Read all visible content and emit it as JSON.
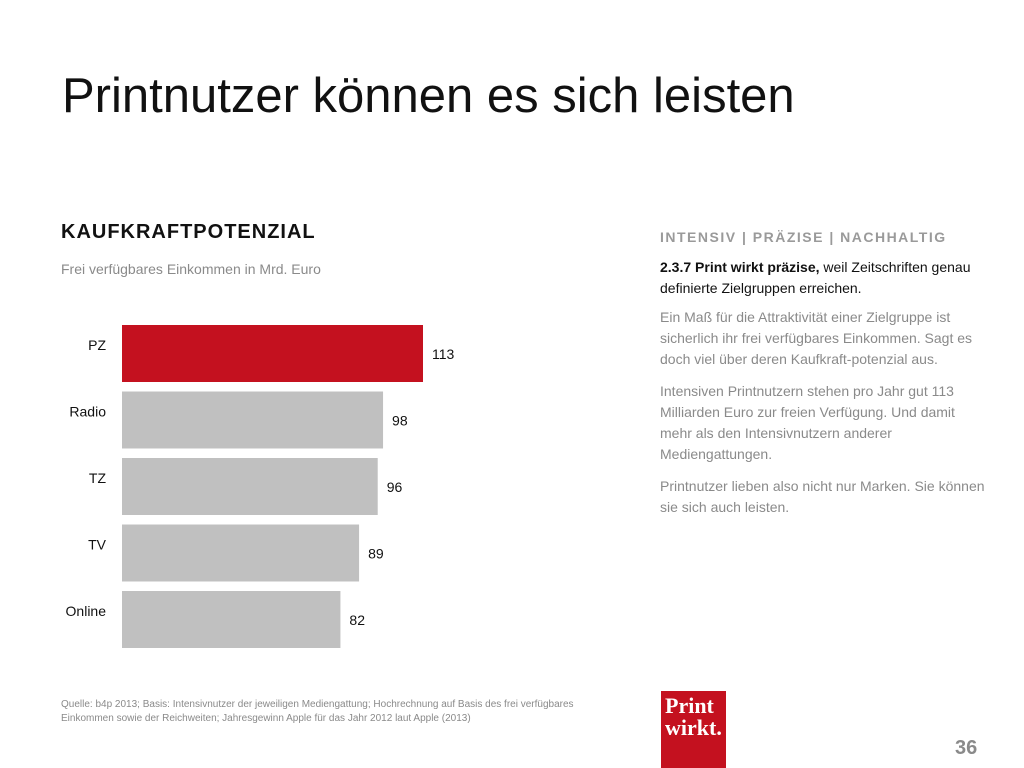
{
  "slide": {
    "title": "Printnutzer können es sich leisten",
    "page_number": "36"
  },
  "chart_data": {
    "type": "bar",
    "orientation": "horizontal",
    "title": "KAUFKRAFTPOTENZIAL",
    "subtitle": "Frei verfügbares Einkommen in Mrd. Euro",
    "categories": [
      "PZ",
      "Radio",
      "TZ",
      "TV",
      "Online"
    ],
    "values": [
      113,
      98,
      96,
      89,
      82
    ],
    "colors": [
      "#c4111f",
      "#c0c0c0",
      "#c0c0c0",
      "#c0c0c0",
      "#c0c0c0"
    ],
    "xlim": [
      0,
      113
    ],
    "grid": false,
    "legend": "none"
  },
  "sidebar": {
    "tagline": "INTENSIV | PRÄZISE | NACHHALTIG",
    "lead_bold": "2.3.7 Print wirkt präzise,",
    "lead_rest": " weil Zeitschriften genau definierte Zielgruppen erreichen.",
    "paragraphs": [
      "Ein Maß für die Attraktivität einer Zielgruppe ist sicherlich ihr frei verfügbares Einkommen. Sagt es doch viel über deren Kaufkraft-potenzial aus.",
      "Intensiven Printnutzern stehen pro Jahr gut 113 Milliarden Euro zur freien Verfügung. Und damit mehr als den Intensivnutzern anderer Mediengattungen.",
      "Printnutzer lieben also nicht nur Marken. Sie können sie sich auch leisten."
    ]
  },
  "footer": {
    "source": "Quelle: b4p 2013; Basis: Intensivnutzer der jeweiligen Mediengattung; Hochrechnung auf Basis des frei verfügbares Einkommen sowie der Reichweiten; Jahresgewinn Apple für das Jahr 2012 laut Apple (2013)",
    "logo_line1": "Print",
    "logo_line2": "wirkt."
  }
}
